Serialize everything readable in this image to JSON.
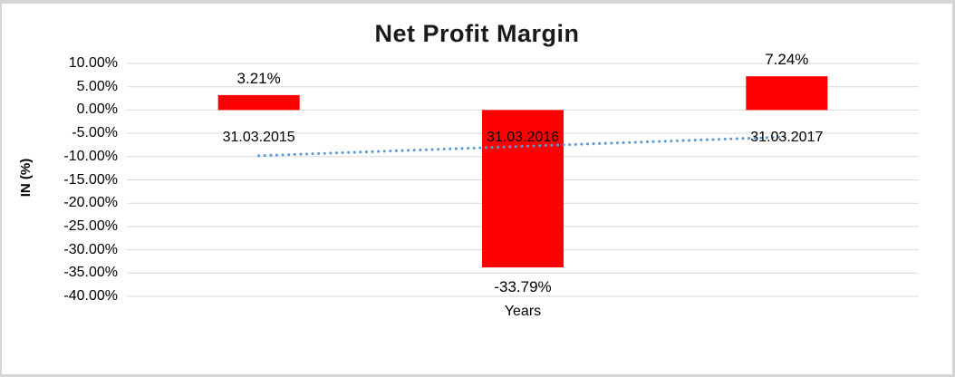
{
  "frame": {
    "background": "#ffffff",
    "border_color": "#d5d5d5"
  },
  "chart_data": {
    "type": "bar",
    "title": "Net Profit Margin",
    "xlabel": "Years",
    "ylabel": "IN (%)",
    "categories": [
      "31.03.2015",
      "31.03.2016",
      "31.03.2017"
    ],
    "values": [
      3.21,
      -33.79,
      7.24
    ],
    "data_labels": [
      "3.21%",
      "-33.79%",
      "7.24%"
    ],
    "ylim": [
      -40,
      10
    ],
    "y_tick_step": 5,
    "y_tick_labels": [
      "10.00%",
      "5.00%",
      "0.00%",
      "-5.00%",
      "-10.00%",
      "-15.00%",
      "-20.00%",
      "-25.00%",
      "-30.00%",
      "-35.00%",
      "-40.00%"
    ],
    "grid": true,
    "legend": "none",
    "bar_color": "#ff0000",
    "gridline_color": "#d9d9d9",
    "trendline": {
      "style": "dotted",
      "color": "#5b9bd5",
      "start_value": -9.8,
      "end_value": -5.77
    }
  }
}
